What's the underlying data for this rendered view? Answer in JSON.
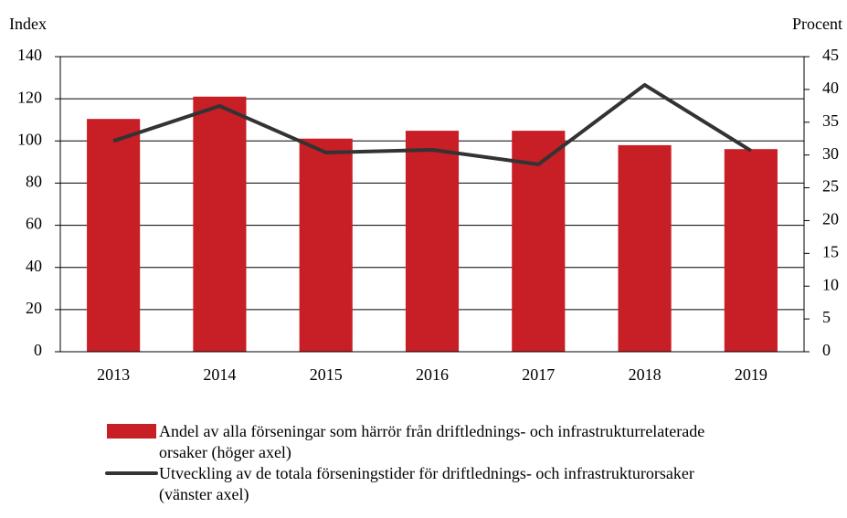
{
  "chart_data": {
    "type": "bar",
    "y_label": "Index",
    "y2_label": "Procent",
    "categories": [
      "2013",
      "2014",
      "2015",
      "2016",
      "2017",
      "2018",
      "2019"
    ],
    "series": [
      {
        "name": "Andel av alla förseningar som härrör från driftlednings- och infrastrukturrelaterade orsaker (höger axel)",
        "type": "bar",
        "axis": "y2",
        "color": "#c81e25",
        "values": [
          35.5,
          38.9,
          32.5,
          33.7,
          33.7,
          31.5,
          30.9
        ]
      },
      {
        "name": "Utveckling av de totala förseningstider för driftlednings- och infrastrukturorsaker (vänster axel)",
        "type": "line",
        "color": "#333333",
        "values": [
          100,
          116.6,
          94.5,
          95.8,
          88.9,
          126.6,
          95.4
        ]
      }
    ],
    "ylim": [
      0,
      140
    ],
    "yticks": [
      0,
      20,
      40,
      60,
      80,
      100,
      120,
      140
    ],
    "y2lim": [
      0,
      45
    ],
    "y2ticks": [
      0,
      5,
      10,
      15,
      20,
      25,
      30,
      35,
      40,
      45
    ],
    "grid": true
  }
}
